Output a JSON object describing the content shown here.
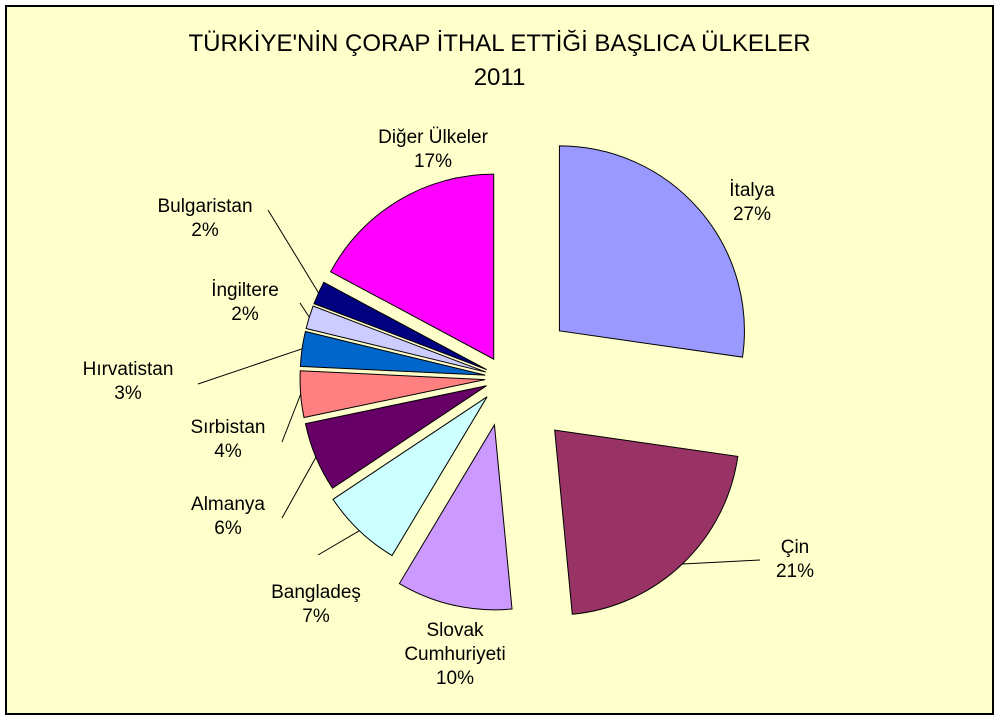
{
  "chart_data": {
    "type": "pie",
    "title": "TÜRKİYE'NİN ÇORAP İTHAL ETTİĞİ BAŞLICA ÜLKELER",
    "subtitle": "2011",
    "categories": [
      "İtalya",
      "Çin",
      "Slovak Cumhuriyeti",
      "Bangladeş",
      "Almanya",
      "Sırbistan",
      "Hırvatistan",
      "İngiltere",
      "Bulgaristan",
      "Diğer Ülkeler"
    ],
    "values": [
      27,
      21,
      10,
      7,
      6,
      4,
      3,
      2,
      2,
      17
    ],
    "value_labels": [
      "27%",
      "21%",
      "10%",
      "7%",
      "6%",
      "4%",
      "3%",
      "2%",
      "2%",
      "17%"
    ],
    "colors": [
      "#9999ff",
      "#993366",
      "#cc99ff",
      "#ccffff",
      "#660066",
      "#ff8080",
      "#0066cc",
      "#ccccff",
      "#000080",
      "#ff00ff"
    ]
  }
}
